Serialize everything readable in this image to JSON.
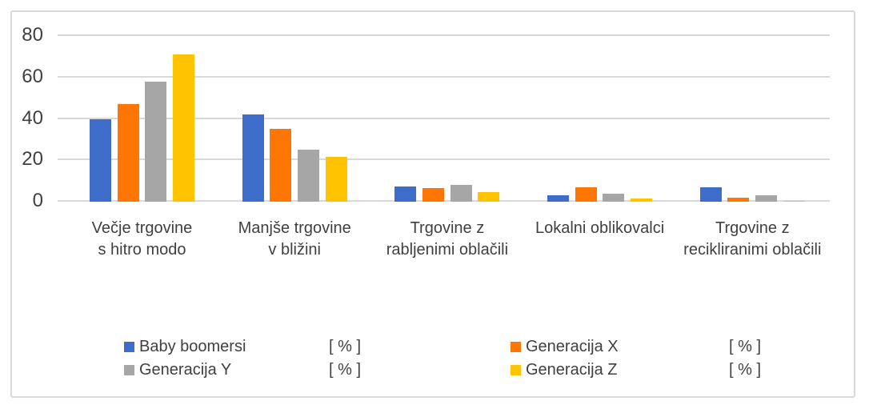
{
  "chart_data": {
    "type": "bar",
    "title": "",
    "xlabel": "",
    "ylabel": "",
    "categories": [
      "Večje trgovine s hitro modo",
      "Manjše trgovine v bližini",
      "Trgovine z rabljenimi oblačili",
      "Lokalni oblikovalci",
      "Trgovine z recikliranimi oblačili"
    ],
    "series": [
      {
        "name": "Baby boomersi",
        "unit_label": "[ % ]",
        "color": "#3D6CC9",
        "values": [
          40,
          42,
          7.5,
          3,
          7
        ]
      },
      {
        "name": "Generacija X",
        "unit_label": "[ % ]",
        "color": "#FF7702",
        "values": [
          47,
          35,
          6.5,
          7,
          2
        ]
      },
      {
        "name": "Generacija Y",
        "unit_label": "[ % ]",
        "color": "#A6A6A6",
        "values": [
          58,
          25,
          8,
          4,
          3
        ]
      },
      {
        "name": "Generacija Z",
        "unit_label": "[ % ]",
        "color": "#FFC301",
        "values": [
          71,
          21.5,
          4.5,
          1.5,
          0.5
        ]
      }
    ],
    "ylim": [
      0,
      80
    ],
    "yticks": [
      0,
      20,
      40,
      60,
      80
    ],
    "grid": true,
    "legend_position": "bottom",
    "legend_rows": [
      [
        "Baby boomersi",
        "Generacija X"
      ],
      [
        "Generacija Y",
        "Generacija Z"
      ]
    ],
    "colors": {
      "gridline": "#D9D9D9",
      "frame_border": "#D9D9D9",
      "text": "#404040",
      "background": "#FFFFFF"
    }
  }
}
